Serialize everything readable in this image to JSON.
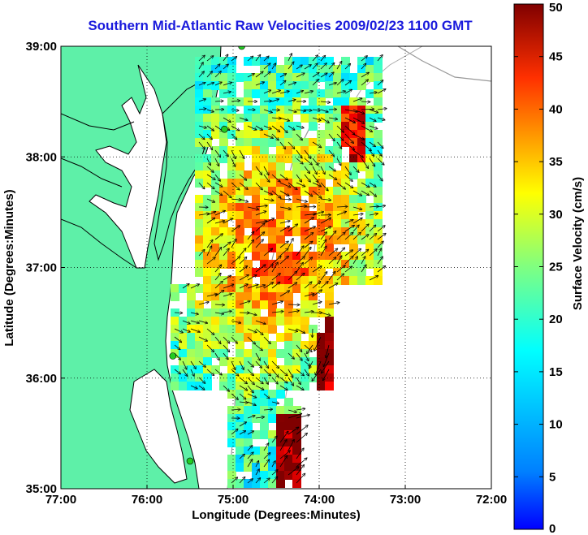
{
  "title": "Southern Mid-Atlantic Raw Velocities 2009/02/23 1100 GMT",
  "colors": {
    "land": "#5ef0a8",
    "coast": "#000000",
    "station": "#22cc22",
    "title": "#1a1adc"
  },
  "map": {
    "xlabel": "Longitude (Degrees:Minutes)",
    "ylabel": "Latitude (Degrees:Minutes)",
    "lon_range": [
      -77,
      -72
    ],
    "lat_range": [
      35,
      39
    ],
    "x_ticks": [
      {
        "value": -77,
        "label": "77:00"
      },
      {
        "value": -76,
        "label": "76:00"
      },
      {
        "value": -75,
        "label": "75:00"
      },
      {
        "value": -74,
        "label": "74:00"
      },
      {
        "value": -73,
        "label": "73:00"
      },
      {
        "value": -72,
        "label": "72:00"
      }
    ],
    "y_ticks": [
      {
        "value": 39,
        "label": "39:00"
      },
      {
        "value": 38,
        "label": "38:00"
      },
      {
        "value": 37,
        "label": "37:00"
      },
      {
        "value": 36,
        "label": "36:00"
      },
      {
        "value": 35,
        "label": "35:00"
      }
    ],
    "grid": "dotted",
    "stations": [
      {
        "lon": -74.9,
        "lat": 39.0
      },
      {
        "lon": -75.1,
        "lat": 38.25
      },
      {
        "lon": -75.7,
        "lat": 36.2
      },
      {
        "lon": -75.5,
        "lat": 35.25
      }
    ]
  },
  "colorbar": {
    "label": "Surface Velocity (cm/s)",
    "range": [
      0,
      50
    ],
    "ticks": [
      0,
      5,
      10,
      15,
      20,
      25,
      30,
      35,
      40,
      45,
      50
    ],
    "colormap": "jet"
  }
}
